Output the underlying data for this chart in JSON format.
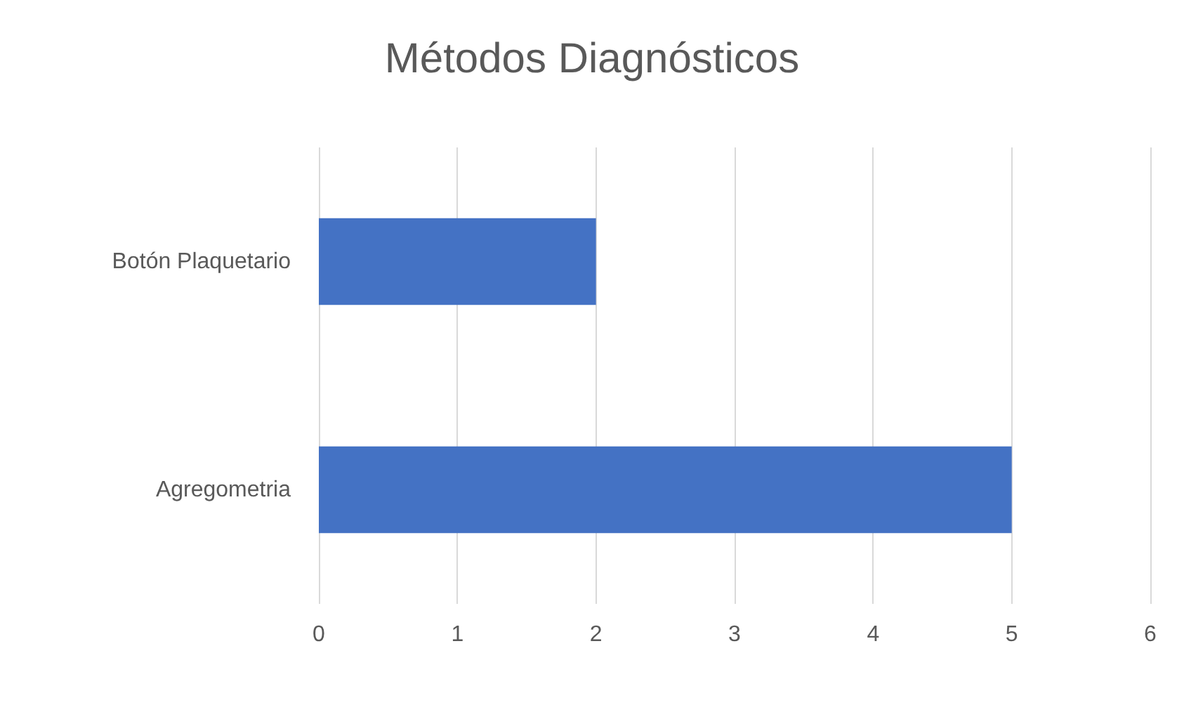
{
  "chart_data": {
    "type": "bar",
    "orientation": "horizontal",
    "title": "Métodos Diagnósticos",
    "categories": [
      "Botón Plaquetario",
      "Agregometria"
    ],
    "values": [
      2,
      5
    ],
    "color": "#4472c4",
    "xlim": [
      0,
      6
    ],
    "xticks": [
      0,
      1,
      2,
      3,
      4,
      5,
      6
    ],
    "grid": "x"
  }
}
